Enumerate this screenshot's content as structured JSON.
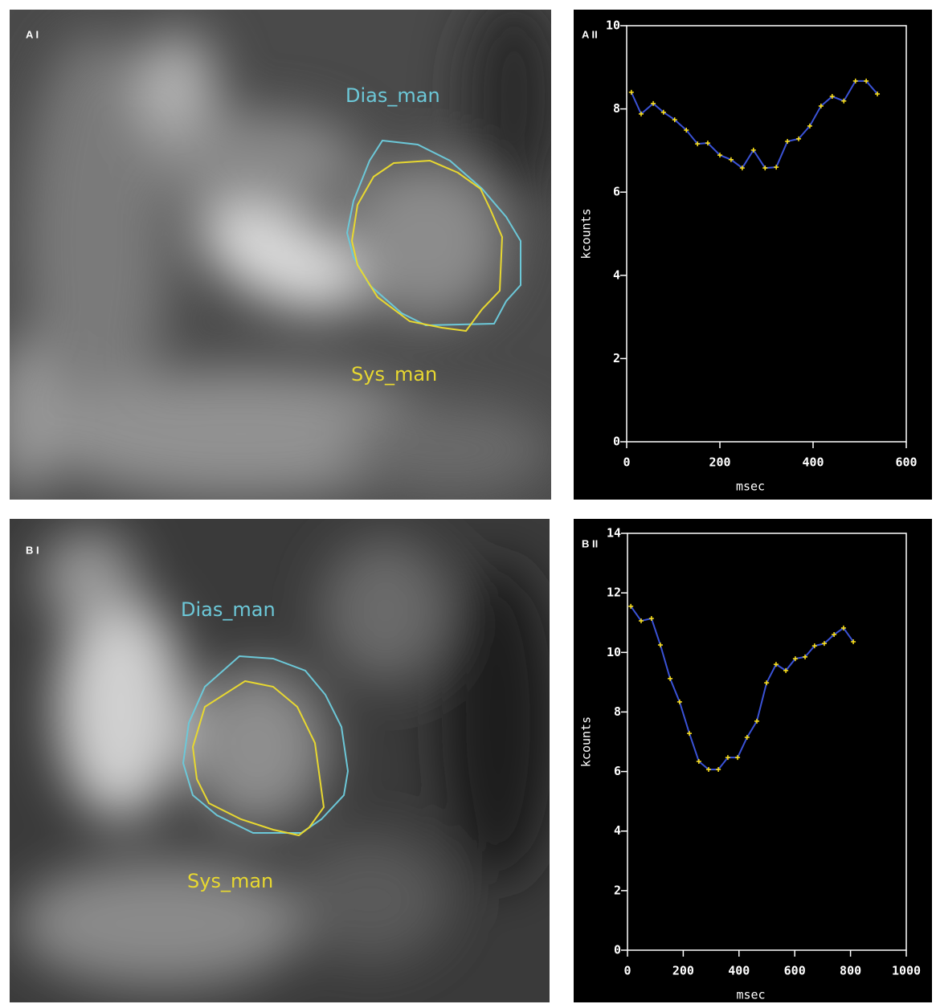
{
  "images": [
    {
      "label": "A I",
      "contour_labels": [
        "Dias_man",
        "Sys_man"
      ]
    },
    {
      "label": "B I",
      "contour_labels": [
        "Dias_man",
        "Sys_man"
      ]
    }
  ],
  "chart_data": [
    {
      "type": "line",
      "title": "A II",
      "xlabel": "msec",
      "ylabel": "kcounts",
      "x": [
        10,
        31,
        57,
        79,
        103,
        128,
        152,
        174,
        200,
        224,
        248,
        272,
        297,
        321,
        345,
        369,
        393,
        417,
        441,
        466,
        491,
        514,
        538
      ],
      "values": [
        8.4,
        7.88,
        8.13,
        7.92,
        7.74,
        7.49,
        7.16,
        7.18,
        6.89,
        6.78,
        6.58,
        7.01,
        6.58,
        6.6,
        7.22,
        7.28,
        7.59,
        8.07,
        8.3,
        8.19,
        8.67,
        8.67,
        8.36
      ],
      "color": "#3a52d6",
      "marker_color": "#ffe41a",
      "xlim": [
        0,
        600
      ],
      "xticks": [
        0,
        200,
        400,
        600
      ],
      "ylim": [
        0,
        10
      ],
      "yticks": [
        0,
        2,
        4,
        6,
        8,
        10
      ]
    },
    {
      "type": "line",
      "title": "B II",
      "xlabel": "msec",
      "ylabel": "kcounts",
      "x": [
        12,
        49,
        86,
        118,
        153,
        187,
        222,
        256,
        291,
        326,
        360,
        395,
        429,
        464,
        499,
        533,
        568,
        602,
        637,
        671,
        706,
        741,
        775,
        810
      ],
      "values": [
        11.55,
        11.06,
        11.14,
        10.25,
        9.12,
        8.34,
        7.28,
        6.34,
        6.07,
        6.07,
        6.47,
        6.47,
        7.15,
        7.69,
        8.98,
        9.6,
        9.39,
        9.79,
        9.85,
        10.22,
        10.3,
        10.6,
        10.82,
        10.36
      ],
      "color": "#3a52d6",
      "marker_color": "#ffe41a",
      "xlim": [
        0,
        1000
      ],
      "xticks": [
        0,
        200,
        400,
        600,
        800,
        1000
      ],
      "ylim": [
        0,
        14
      ],
      "yticks": [
        0,
        2,
        4,
        6,
        8,
        10,
        12,
        14
      ]
    }
  ]
}
